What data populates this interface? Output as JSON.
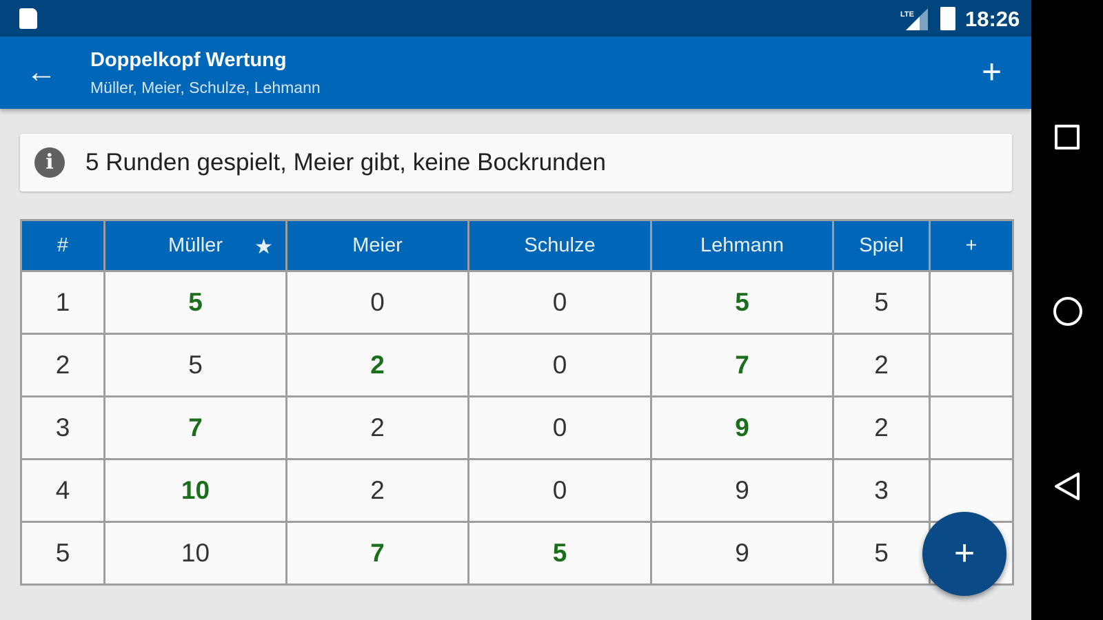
{
  "status": {
    "time": "18:26",
    "network": "LTE"
  },
  "appbar": {
    "title": "Doppelkopf Wertung",
    "subtitle": "Müller, Meier, Schulze, Lehmann",
    "back_icon": "←",
    "add_icon": "+"
  },
  "info": {
    "icon": "i",
    "text": "5 Runden gespielt, Meier gibt, keine Bockrunden"
  },
  "table": {
    "headers": [
      "#",
      "Müller",
      "Meier",
      "Schulze",
      "Lehmann",
      "Spiel",
      "+"
    ],
    "star": "★",
    "rows": [
      [
        "1",
        "5",
        "0",
        "0",
        "5",
        "5",
        ""
      ],
      [
        "2",
        "5",
        "2",
        "0",
        "7",
        "2",
        ""
      ],
      [
        "3",
        "7",
        "2",
        "0",
        "9",
        "2",
        ""
      ],
      [
        "4",
        "10",
        "2",
        "0",
        "9",
        "3",
        ""
      ],
      [
        "5",
        "10",
        "7",
        "5",
        "9",
        "5",
        ""
      ]
    ],
    "highlight": [
      [
        1,
        4
      ],
      [
        2,
        4
      ],
      [
        1,
        4
      ],
      [
        1
      ],
      [
        2,
        3
      ]
    ]
  },
  "fab": {
    "icon": "+"
  },
  "colors": {
    "primary": "#0066b8",
    "status": "#00457e",
    "highlight": "#1b6e1b"
  }
}
